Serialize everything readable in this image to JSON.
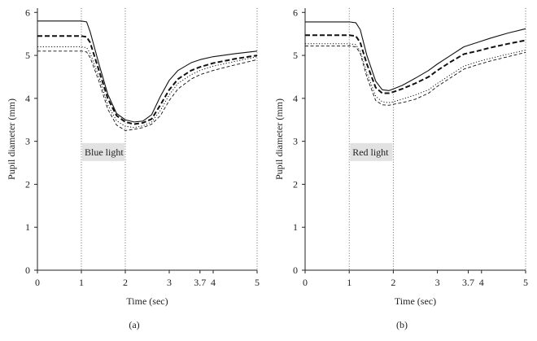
{
  "chart_data": [
    {
      "type": "line",
      "panel_label": "(a)",
      "xlabel": "Time (sec)",
      "ylabel": "Pupil diameter (mm)",
      "xlim": [
        0,
        5
      ],
      "ylim": [
        0,
        6.1
      ],
      "xticks": [
        {
          "value": 0,
          "label": "0"
        },
        {
          "value": 1,
          "label": "1"
        },
        {
          "value": 2,
          "label": "2"
        },
        {
          "value": 3,
          "label": "3"
        },
        {
          "value": 3.7,
          "label": "3.7"
        },
        {
          "value": 4,
          "label": "4"
        },
        {
          "value": 5,
          "label": "5"
        }
      ],
      "yticks": [
        {
          "value": 0,
          "label": "0"
        },
        {
          "value": 1,
          "label": "1"
        },
        {
          "value": 2,
          "label": "2"
        },
        {
          "value": 3,
          "label": "3"
        },
        {
          "value": 4,
          "label": "4"
        },
        {
          "value": 5,
          "label": "5"
        },
        {
          "value": 6,
          "label": "6"
        }
      ],
      "vlines": [
        1,
        2,
        5
      ],
      "stimulus": {
        "label": "Blue light",
        "start": 1,
        "end": 2,
        "y_center": 2.75
      },
      "series": [
        {
          "name": "solid",
          "style": "solid",
          "x": [
            0,
            1.0,
            1.12,
            1.2,
            1.4,
            1.6,
            1.8,
            2.0,
            2.2,
            2.4,
            2.6,
            2.8,
            3.0,
            3.2,
            3.5,
            3.7,
            4.0,
            4.5,
            5.0
          ],
          "y": [
            5.8,
            5.8,
            5.78,
            5.55,
            4.8,
            4.1,
            3.65,
            3.5,
            3.45,
            3.47,
            3.62,
            4.05,
            4.42,
            4.65,
            4.83,
            4.9,
            4.97,
            5.04,
            5.1
          ]
        },
        {
          "name": "thick-dashed",
          "style": "thickdash",
          "x": [
            0,
            1.0,
            1.12,
            1.2,
            1.4,
            1.6,
            1.8,
            2.0,
            2.2,
            2.4,
            2.6,
            2.8,
            3.0,
            3.2,
            3.5,
            3.7,
            4.0,
            4.5,
            5.0
          ],
          "y": [
            5.45,
            5.45,
            5.43,
            5.3,
            4.65,
            4.0,
            3.6,
            3.45,
            3.4,
            3.43,
            3.52,
            3.85,
            4.2,
            4.45,
            4.65,
            4.73,
            4.82,
            4.92,
            5.0
          ]
        },
        {
          "name": "dotted",
          "style": "dotted",
          "x": [
            0,
            1.0,
            1.12,
            1.2,
            1.4,
            1.6,
            1.8,
            2.0,
            2.2,
            2.4,
            2.6,
            2.8,
            3.0,
            3.2,
            3.5,
            3.7,
            4.0,
            4.5,
            5.0
          ],
          "y": [
            5.2,
            5.2,
            5.18,
            5.05,
            4.5,
            3.85,
            3.48,
            3.35,
            3.32,
            3.36,
            3.45,
            3.72,
            4.08,
            4.35,
            4.55,
            4.65,
            4.75,
            4.86,
            4.97
          ]
        },
        {
          "name": "thin-dashed",
          "style": "thindash",
          "x": [
            0,
            1.0,
            1.12,
            1.2,
            1.4,
            1.6,
            1.8,
            2.0,
            2.2,
            2.4,
            2.6,
            2.8,
            3.0,
            3.2,
            3.5,
            3.7,
            4.0,
            4.5,
            5.0
          ],
          "y": [
            5.1,
            5.1,
            5.08,
            4.95,
            4.4,
            3.75,
            3.38,
            3.25,
            3.28,
            3.32,
            3.4,
            3.6,
            3.95,
            4.22,
            4.45,
            4.55,
            4.65,
            4.78,
            4.9
          ]
        }
      ]
    },
    {
      "type": "line",
      "panel_label": "(b)",
      "xlabel": "Time (sec)",
      "ylabel": "Pupil diameter (mm)",
      "xlim": [
        0,
        5
      ],
      "ylim": [
        0,
        6.1
      ],
      "xticks": [
        {
          "value": 0,
          "label": "0"
        },
        {
          "value": 1,
          "label": "1"
        },
        {
          "value": 2,
          "label": "2"
        },
        {
          "value": 3,
          "label": "3"
        },
        {
          "value": 3.7,
          "label": "3.7"
        },
        {
          "value": 4,
          "label": "4"
        },
        {
          "value": 5,
          "label": "5"
        }
      ],
      "yticks": [
        {
          "value": 0,
          "label": "0"
        },
        {
          "value": 1,
          "label": "1"
        },
        {
          "value": 2,
          "label": "2"
        },
        {
          "value": 3,
          "label": "3"
        },
        {
          "value": 4,
          "label": "4"
        },
        {
          "value": 5,
          "label": "5"
        },
        {
          "value": 6,
          "label": "6"
        }
      ],
      "vlines": [
        1,
        2,
        5
      ],
      "stimulus": {
        "label": "Red light",
        "start": 1,
        "end": 2,
        "y_center": 2.75
      },
      "series": [
        {
          "name": "solid",
          "style": "solid",
          "x": [
            0,
            1.0,
            1.15,
            1.25,
            1.4,
            1.6,
            1.75,
            1.9,
            2.0,
            2.2,
            2.5,
            2.8,
            3.0,
            3.3,
            3.6,
            3.9,
            4.2,
            4.6,
            5.0
          ],
          "y": [
            5.78,
            5.78,
            5.76,
            5.6,
            5.0,
            4.4,
            4.2,
            4.18,
            4.22,
            4.3,
            4.47,
            4.65,
            4.8,
            5.0,
            5.2,
            5.3,
            5.4,
            5.52,
            5.62
          ]
        },
        {
          "name": "thick-dashed",
          "style": "thickdash",
          "x": [
            0,
            1.0,
            1.15,
            1.25,
            1.4,
            1.6,
            1.75,
            1.9,
            2.0,
            2.2,
            2.5,
            2.8,
            3.0,
            3.3,
            3.6,
            3.9,
            4.2,
            4.6,
            5.0
          ],
          "y": [
            5.47,
            5.47,
            5.45,
            5.3,
            4.8,
            4.25,
            4.12,
            4.12,
            4.15,
            4.22,
            4.35,
            4.5,
            4.65,
            4.85,
            5.03,
            5.1,
            5.18,
            5.27,
            5.35
          ]
        },
        {
          "name": "dotted",
          "style": "dotted",
          "x": [
            0,
            1.0,
            1.15,
            1.25,
            1.4,
            1.6,
            1.75,
            1.9,
            2.0,
            2.2,
            2.5,
            2.8,
            3.0,
            3.3,
            3.6,
            3.9,
            4.2,
            4.6,
            5.0
          ],
          "y": [
            5.27,
            5.27,
            5.25,
            5.1,
            4.6,
            4.05,
            3.92,
            3.9,
            3.92,
            3.98,
            4.08,
            4.2,
            4.35,
            4.55,
            4.75,
            4.85,
            4.93,
            5.03,
            5.12
          ]
        },
        {
          "name": "thin-dashed",
          "style": "thindash",
          "x": [
            0,
            1.0,
            1.15,
            1.25,
            1.4,
            1.6,
            1.75,
            1.9,
            2.0,
            2.2,
            2.5,
            2.8,
            3.0,
            3.3,
            3.6,
            3.9,
            4.2,
            4.6,
            5.0
          ],
          "y": [
            5.22,
            5.22,
            5.2,
            5.05,
            4.5,
            3.95,
            3.85,
            3.84,
            3.86,
            3.9,
            3.98,
            4.12,
            4.28,
            4.48,
            4.68,
            4.78,
            4.87,
            4.97,
            5.07
          ]
        }
      ]
    }
  ]
}
